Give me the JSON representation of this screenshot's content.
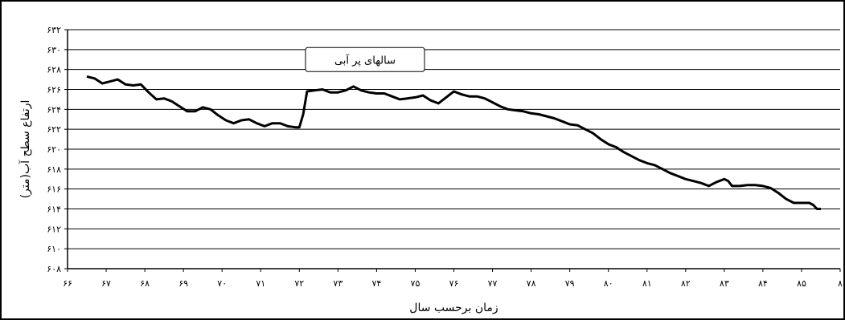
{
  "chart_data": {
    "type": "line",
    "xlabel": "زمان برحسب سال",
    "ylabel": "ارتفاع سطح آب(متر)",
    "x_categories": [
      "۶۶",
      "۶۷",
      "۶۸",
      "۶۹",
      "۷۰",
      "۷۱",
      "۷۲",
      "۷۳",
      "۷۴",
      "۷۵",
      "۷۶",
      "۷۷",
      "۷۸",
      "۷۹",
      "۸۰",
      "۸۱",
      "۸۲",
      "۸۳",
      "۸۴",
      "۸۵",
      "۸"
    ],
    "x_range": [
      66,
      86
    ],
    "y_ticks": [
      {
        "value": 608,
        "label": "۶۰۸"
      },
      {
        "value": 610,
        "label": "۶۱۰"
      },
      {
        "value": 612,
        "label": "۶۱۲"
      },
      {
        "value": 614,
        "label": "۶۱۴"
      },
      {
        "value": 616,
        "label": "۶۱۶"
      },
      {
        "value": 618,
        "label": "۶۱۸"
      },
      {
        "value": 620,
        "label": "۶۲۰"
      },
      {
        "value": 622,
        "label": "۶۲۲"
      },
      {
        "value": 624,
        "label": "۶۲۴"
      },
      {
        "value": 626,
        "label": "۶۲۶"
      },
      {
        "value": 628,
        "label": "۶۲۸"
      },
      {
        "value": 630,
        "label": "۶۳۰"
      },
      {
        "value": 632,
        "label": "۶۳۲"
      }
    ],
    "ylim": [
      608,
      632
    ],
    "grid": true,
    "annotation": {
      "text": "سالهای پر آبی",
      "x": 73.7,
      "y": 629
    },
    "series": [
      {
        "color": "#000000",
        "points": [
          [
            66.5,
            627.3
          ],
          [
            66.7,
            627.1
          ],
          [
            66.9,
            626.6
          ],
          [
            67.1,
            626.8
          ],
          [
            67.3,
            627.0
          ],
          [
            67.5,
            626.5
          ],
          [
            67.7,
            626.4
          ],
          [
            67.9,
            626.5
          ],
          [
            68.1,
            625.7
          ],
          [
            68.3,
            625.0
          ],
          [
            68.5,
            625.1
          ],
          [
            68.7,
            624.8
          ],
          [
            68.9,
            624.3
          ],
          [
            69.1,
            623.8
          ],
          [
            69.3,
            623.8
          ],
          [
            69.5,
            624.2
          ],
          [
            69.7,
            624.0
          ],
          [
            69.9,
            623.4
          ],
          [
            70.1,
            622.9
          ],
          [
            70.3,
            622.6
          ],
          [
            70.5,
            622.9
          ],
          [
            70.7,
            623.0
          ],
          [
            70.9,
            622.6
          ],
          [
            71.1,
            622.3
          ],
          [
            71.3,
            622.6
          ],
          [
            71.5,
            622.6
          ],
          [
            71.7,
            622.3
          ],
          [
            71.9,
            622.2
          ],
          [
            72.0,
            622.2
          ],
          [
            72.1,
            623.5
          ],
          [
            72.2,
            625.8
          ],
          [
            72.4,
            625.9
          ],
          [
            72.6,
            626.0
          ],
          [
            72.8,
            625.7
          ],
          [
            73.0,
            625.7
          ],
          [
            73.2,
            625.9
          ],
          [
            73.4,
            626.3
          ],
          [
            73.6,
            625.9
          ],
          [
            73.8,
            625.7
          ],
          [
            74.0,
            625.6
          ],
          [
            74.2,
            625.6
          ],
          [
            74.4,
            625.3
          ],
          [
            74.6,
            625.0
          ],
          [
            74.8,
            625.1
          ],
          [
            75.0,
            625.2
          ],
          [
            75.2,
            625.4
          ],
          [
            75.4,
            624.9
          ],
          [
            75.6,
            624.6
          ],
          [
            75.8,
            625.2
          ],
          [
            76.0,
            625.8
          ],
          [
            76.2,
            625.5
          ],
          [
            76.4,
            625.3
          ],
          [
            76.6,
            625.3
          ],
          [
            76.8,
            625.1
          ],
          [
            77.0,
            624.7
          ],
          [
            77.2,
            624.3
          ],
          [
            77.4,
            624.0
          ],
          [
            77.6,
            623.9
          ],
          [
            77.8,
            623.8
          ],
          [
            78.0,
            623.6
          ],
          [
            78.2,
            623.5
          ],
          [
            78.4,
            623.3
          ],
          [
            78.6,
            623.1
          ],
          [
            78.8,
            622.8
          ],
          [
            79.0,
            622.5
          ],
          [
            79.2,
            622.4
          ],
          [
            79.4,
            622.0
          ],
          [
            79.6,
            621.6
          ],
          [
            79.8,
            621.0
          ],
          [
            80.0,
            620.5
          ],
          [
            80.2,
            620.2
          ],
          [
            80.4,
            619.7
          ],
          [
            80.6,
            619.3
          ],
          [
            80.8,
            618.9
          ],
          [
            81.0,
            618.6
          ],
          [
            81.2,
            618.4
          ],
          [
            81.4,
            618.0
          ],
          [
            81.6,
            617.6
          ],
          [
            81.8,
            617.3
          ],
          [
            82.0,
            617.0
          ],
          [
            82.2,
            616.8
          ],
          [
            82.4,
            616.6
          ],
          [
            82.6,
            616.3
          ],
          [
            82.8,
            616.7
          ],
          [
            83.0,
            617.0
          ],
          [
            83.1,
            616.8
          ],
          [
            83.2,
            616.3
          ],
          [
            83.4,
            616.3
          ],
          [
            83.6,
            616.4
          ],
          [
            83.8,
            616.4
          ],
          [
            84.0,
            616.3
          ],
          [
            84.2,
            616.1
          ],
          [
            84.4,
            615.6
          ],
          [
            84.6,
            615.0
          ],
          [
            84.8,
            614.6
          ],
          [
            85.0,
            614.6
          ],
          [
            85.2,
            614.6
          ],
          [
            85.3,
            614.4
          ],
          [
            85.4,
            614.0
          ],
          [
            85.5,
            614.0
          ]
        ]
      }
    ]
  }
}
